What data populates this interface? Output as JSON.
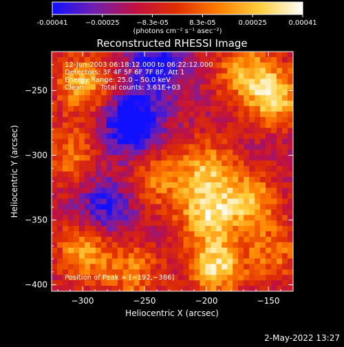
{
  "chart_data": {
    "type": "heatmap",
    "title": "Reconstructed RHESSI Image",
    "xlabel": "Heliocentric X (arcsec)",
    "ylabel": "Heliocentric Y (arcsec)",
    "xlim": [
      -325,
      -130
    ],
    "ylim": [
      -405,
      -220
    ],
    "x_ticks": [
      -300,
      -250,
      -200,
      -150
    ],
    "y_ticks": [
      -400,
      -350,
      -300,
      -250
    ],
    "x_tick_labels": [
      "−300",
      "−250",
      "−200",
      "−150"
    ],
    "y_tick_labels": [
      "−400",
      "−350",
      "−300",
      "−250"
    ],
    "colorbar": {
      "min": -0.00041,
      "max": 0.00041,
      "tick_labels": [
        "-0.00041",
        "−0.00025",
        "−8.3e-05",
        "8.3e-05",
        "0.00025",
        "0.00041"
      ],
      "units": "(photons cm⁻² s⁻¹ asec⁻²)",
      "colors": [
        "#1010ff",
        "#7020b0",
        "#c01040",
        "#e03000",
        "#ff8000",
        "#ffd040",
        "#ffffff"
      ]
    },
    "annotations": [
      "12-Jun-2003 06:18:12.000 to 06:22:12.000",
      "Detectors: 3F 4F 5F 6F 7F 8F, Att 1",
      "Energy Range: 25.0 – 50.0 keV",
      "Clean",
      "Total counts: 3.61E+03",
      "Position of Peak = [−192,−386]"
    ],
    "bright_regions": [
      {
        "x": -145,
        "y": -255,
        "intensity": 0.95
      },
      {
        "x": -170,
        "y": -235,
        "intensity": 0.7
      },
      {
        "x": -300,
        "y": -245,
        "intensity": 0.8
      },
      {
        "x": -310,
        "y": -300,
        "intensity": 0.55
      },
      {
        "x": -200,
        "y": -310,
        "intensity": 0.75
      },
      {
        "x": -200,
        "y": -345,
        "intensity": 0.9
      },
      {
        "x": -165,
        "y": -335,
        "intensity": 0.8
      },
      {
        "x": -192,
        "y": -386,
        "intensity": 1.0
      },
      {
        "x": -300,
        "y": -375,
        "intensity": 0.75
      },
      {
        "x": -240,
        "y": -320,
        "intensity": 0.55
      },
      {
        "x": -260,
        "y": -390,
        "intensity": 0.6
      },
      {
        "x": -145,
        "y": -375,
        "intensity": 0.55
      }
    ],
    "dim_regions": [
      {
        "x": -260,
        "y": -275,
        "intensity": -0.9
      },
      {
        "x": -240,
        "y": -230,
        "intensity": -0.6
      },
      {
        "x": -280,
        "y": -340,
        "intensity": -0.55
      }
    ]
  },
  "footer": {
    "date": "2-May-2022 13:27"
  }
}
